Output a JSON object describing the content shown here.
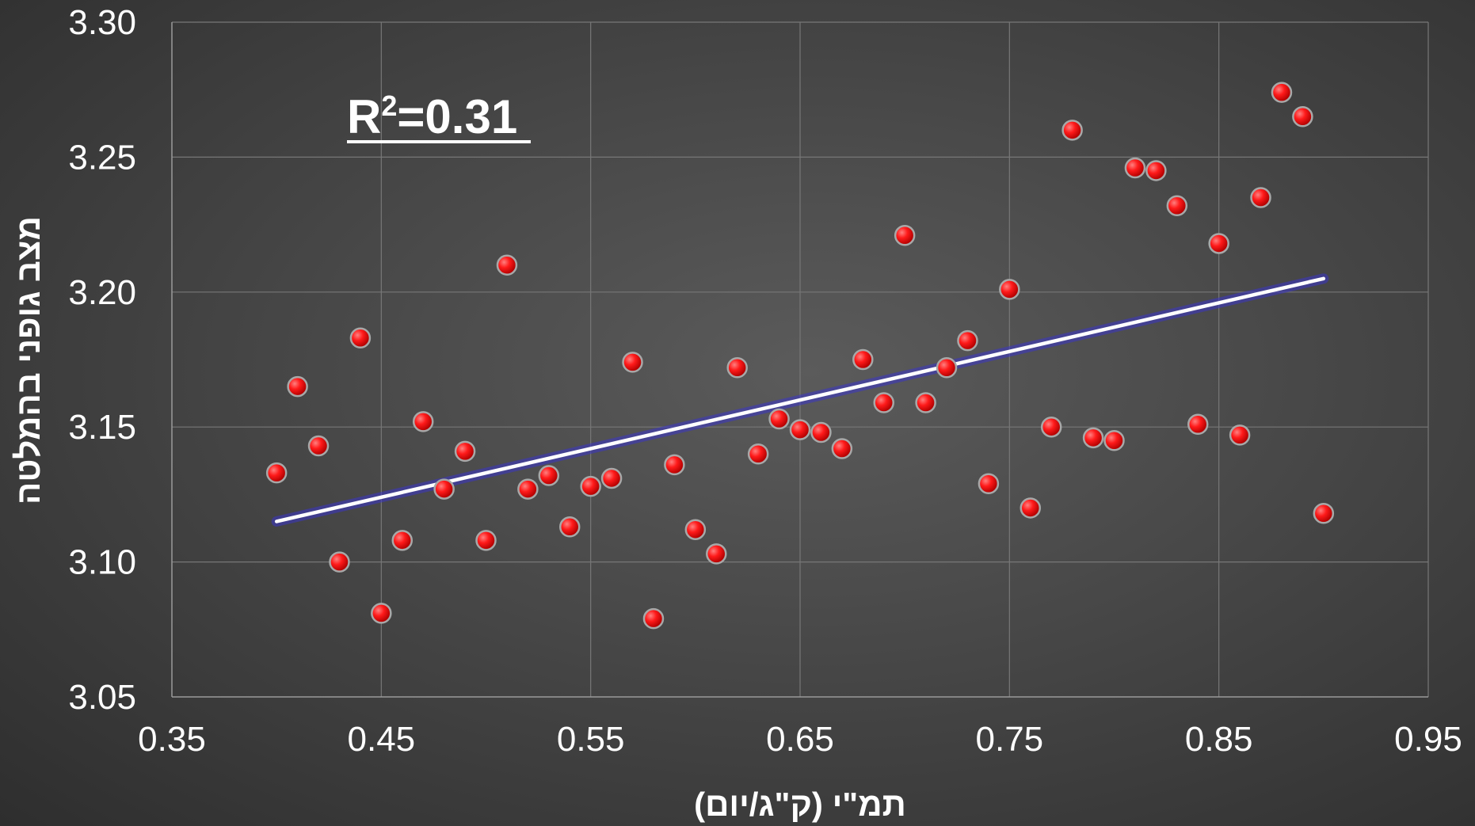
{
  "chart_data": {
    "type": "scatter",
    "xlabel": "תמ\"י (ק\"ג/יום)",
    "ylabel": "מצב גופני בהמלטה",
    "xlim": [
      0.35,
      0.95
    ],
    "ylim": [
      3.05,
      3.3
    ],
    "x_ticks": [
      "0.35",
      "0.45",
      "0.55",
      "0.65",
      "0.75",
      "0.85",
      "0.95"
    ],
    "y_ticks": [
      "3.05",
      "3.10",
      "3.15",
      "3.20",
      "3.25",
      "3.30"
    ],
    "grid": true,
    "legend": "none",
    "annotation": {
      "base": "R",
      "sup": "2",
      "rest": "=0.31"
    },
    "trendline": {
      "x": [
        0.4,
        0.9
      ],
      "y": [
        3.115,
        3.205
      ]
    },
    "colors": {
      "points": "#ff1a1a",
      "trendline": "#ffffff",
      "trendline_glow": "#3a35c8"
    },
    "points": [
      [
        0.4,
        3.133
      ],
      [
        0.41,
        3.165
      ],
      [
        0.42,
        3.143
      ],
      [
        0.43,
        3.1
      ],
      [
        0.44,
        3.183
      ],
      [
        0.45,
        3.081
      ],
      [
        0.46,
        3.108
      ],
      [
        0.47,
        3.152
      ],
      [
        0.48,
        3.127
      ],
      [
        0.49,
        3.141
      ],
      [
        0.5,
        3.108
      ],
      [
        0.51,
        3.21
      ],
      [
        0.52,
        3.127
      ],
      [
        0.53,
        3.132
      ],
      [
        0.54,
        3.113
      ],
      [
        0.55,
        3.128
      ],
      [
        0.56,
        3.131
      ],
      [
        0.57,
        3.174
      ],
      [
        0.58,
        3.079
      ],
      [
        0.59,
        3.136
      ],
      [
        0.6,
        3.112
      ],
      [
        0.61,
        3.103
      ],
      [
        0.62,
        3.172
      ],
      [
        0.63,
        3.14
      ],
      [
        0.64,
        3.153
      ],
      [
        0.65,
        3.149
      ],
      [
        0.66,
        3.148
      ],
      [
        0.67,
        3.142
      ],
      [
        0.68,
        3.175
      ],
      [
        0.69,
        3.159
      ],
      [
        0.7,
        3.221
      ],
      [
        0.71,
        3.159
      ],
      [
        0.72,
        3.172
      ],
      [
        0.73,
        3.182
      ],
      [
        0.74,
        3.129
      ],
      [
        0.75,
        3.201
      ],
      [
        0.76,
        3.12
      ],
      [
        0.77,
        3.15
      ],
      [
        0.78,
        3.26
      ],
      [
        0.79,
        3.146
      ],
      [
        0.8,
        3.145
      ],
      [
        0.81,
        3.246
      ],
      [
        0.82,
        3.245
      ],
      [
        0.83,
        3.232
      ],
      [
        0.84,
        3.151
      ],
      [
        0.85,
        3.218
      ],
      [
        0.86,
        3.147
      ],
      [
        0.87,
        3.235
      ],
      [
        0.88,
        3.274
      ],
      [
        0.89,
        3.265
      ],
      [
        0.9,
        3.118
      ]
    ]
  }
}
